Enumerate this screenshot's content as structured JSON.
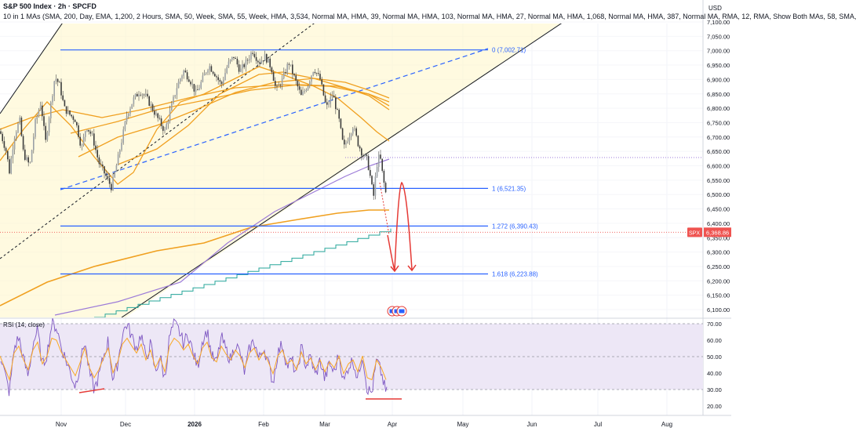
{
  "header": {
    "title": "S&P 500 Index · 2h · SPCFD",
    "indicators": "10 in 1 MAs (SMA, 200, Day, EMA, 1,200, 2 Hours, SMA, 50, Week, SMA, 55, Week, HMA, 3,534, Normal MA, HMA, 39, Normal MA, HMA, 103, Normal MA, HMA, 27, Normal MA, HMA, 1,068, Normal MA, HMA, 387, Normal MA, RMA, 12, RMA, Show Both MAs, 58, SMA,"
  },
  "currency": "USD",
  "colors": {
    "up": "#26a69a",
    "down": "#ef5350",
    "candle": "#5a5a5a",
    "fib": "#2962ff",
    "ma_orange": "#f0a020",
    "ma_purple": "#9c7bd8",
    "ma_teal": "#26a69a",
    "projection": "#e53935",
    "channel_fill": "#fff7cc",
    "rsi_fill": "#ede7f6",
    "rsi_line": "#7e57c2",
    "rsi_ma": "#f9a825"
  },
  "chart_data": {
    "type": "candlestick",
    "price_axis": {
      "min": 6050,
      "max": 7150,
      "ticks": [
        "7,100.00",
        "7,050.00",
        "7,000.00",
        "6,950.00",
        "6,900.00",
        "6,850.00",
        "6,800.00",
        "6,750.00",
        "6,700.00",
        "6,650.00",
        "6,600.00",
        "6,550.00",
        "6,500.00",
        "6,450.00",
        "6,400.00",
        "6,350.00",
        "6,300.00",
        "6,250.00",
        "6,200.00",
        "6,150.00",
        "6,100.00"
      ],
      "last_price": {
        "symbol": "SPX",
        "value": "6,368.86"
      }
    },
    "x_axis": {
      "labels": [
        "Nov",
        "Dec",
        "2026",
        "Feb",
        "Mar",
        "Apr",
        "May",
        "Jun",
        "Jul",
        "Aug"
      ],
      "highlight": "2026"
    },
    "fib_levels": [
      {
        "ratio": "0",
        "label": "0 (7,002.71)",
        "price": 7002.71
      },
      {
        "ratio": "1",
        "label": "1 (6,521.35)",
        "price": 6521.35
      },
      {
        "ratio": "1.272",
        "label": "1.272 (6,390.43)",
        "price": 6390.43
      },
      {
        "ratio": "1.618",
        "label": "1.618 (6,223.88)",
        "price": 6223.88
      }
    ],
    "price_path": [
      [
        0,
        6720
      ],
      [
        8,
        6650
      ],
      [
        12,
        6580
      ],
      [
        18,
        6700
      ],
      [
        25,
        6760
      ],
      [
        30,
        6640
      ],
      [
        38,
        6600
      ],
      [
        45,
        6750
      ],
      [
        52,
        6820
      ],
      [
        58,
        6680
      ],
      [
        64,
        6800
      ],
      [
        70,
        6910
      ],
      [
        76,
        6880
      ],
      [
        82,
        6800
      ],
      [
        88,
        6780
      ],
      [
        96,
        6760
      ],
      [
        104,
        6660
      ],
      [
        110,
        6740
      ],
      [
        118,
        6700
      ],
      [
        126,
        6610
      ],
      [
        134,
        6570
      ],
      [
        142,
        6525
      ],
      [
        150,
        6620
      ],
      [
        156,
        6700
      ],
      [
        162,
        6780
      ],
      [
        170,
        6830
      ],
      [
        178,
        6860
      ],
      [
        186,
        6840
      ],
      [
        194,
        6800
      ],
      [
        202,
        6760
      ],
      [
        210,
        6720
      ],
      [
        218,
        6800
      ],
      [
        226,
        6880
      ],
      [
        234,
        6930
      ],
      [
        242,
        6900
      ],
      [
        250,
        6850
      ],
      [
        258,
        6900
      ],
      [
        266,
        6950
      ],
      [
        274,
        6920
      ],
      [
        282,
        6880
      ],
      [
        290,
        6950
      ],
      [
        298,
        6980
      ],
      [
        306,
        6930
      ],
      [
        314,
        6960
      ],
      [
        322,
        7000
      ],
      [
        330,
        6960
      ],
      [
        338,
        6980
      ],
      [
        346,
        6940
      ],
      [
        352,
        6860
      ],
      [
        360,
        6900
      ],
      [
        368,
        6960
      ],
      [
        376,
        6900
      ],
      [
        384,
        6840
      ],
      [
        392,
        6880
      ],
      [
        400,
        6940
      ],
      [
        408,
        6900
      ],
      [
        416,
        6800
      ],
      [
        424,
        6850
      ],
      [
        432,
        6760
      ],
      [
        438,
        6660
      ],
      [
        444,
        6700
      ],
      [
        450,
        6740
      ],
      [
        456,
        6680
      ],
      [
        462,
        6640
      ],
      [
        468,
        6620
      ],
      [
        472,
        6560
      ],
      [
        476,
        6490
      ],
      [
        480,
        6600
      ],
      [
        484,
        6640
      ],
      [
        488,
        6560
      ],
      [
        492,
        6500
      ]
    ],
    "rsi": {
      "label": "RSI (14, close)",
      "min": 15,
      "max": 75,
      "ticks": [
        "70.00",
        "60.00",
        "50.00",
        "40.00",
        "30.00",
        "20.00"
      ],
      "bands": [
        70,
        50,
        30
      ],
      "path": [
        [
          0,
          52
        ],
        [
          6,
          40
        ],
        [
          12,
          28
        ],
        [
          18,
          55
        ],
        [
          24,
          62
        ],
        [
          30,
          48
        ],
        [
          36,
          38
        ],
        [
          42,
          58
        ],
        [
          48,
          66
        ],
        [
          54,
          44
        ],
        [
          60,
          52
        ],
        [
          66,
          70
        ],
        [
          72,
          68
        ],
        [
          78,
          56
        ],
        [
          84,
          48
        ],
        [
          90,
          40
        ],
        [
          96,
          32
        ],
        [
          102,
          45
        ],
        [
          108,
          60
        ],
        [
          114,
          40
        ],
        [
          120,
          30
        ],
        [
          126,
          38
        ],
        [
          132,
          50
        ],
        [
          138,
          60
        ],
        [
          144,
          35
        ],
        [
          150,
          46
        ],
        [
          156,
          64
        ],
        [
          162,
          70
        ],
        [
          168,
          62
        ],
        [
          174,
          55
        ],
        [
          180,
          64
        ],
        [
          186,
          48
        ],
        [
          192,
          58
        ],
        [
          198,
          40
        ],
        [
          204,
          50
        ],
        [
          210,
          36
        ],
        [
          216,
          62
        ],
        [
          222,
          70
        ],
        [
          228,
          66
        ],
        [
          234,
          58
        ],
        [
          240,
          64
        ],
        [
          246,
          52
        ],
        [
          252,
          44
        ],
        [
          258,
          60
        ],
        [
          264,
          66
        ],
        [
          270,
          50
        ],
        [
          276,
          46
        ],
        [
          282,
          62
        ],
        [
          288,
          54
        ],
        [
          294,
          48
        ],
        [
          300,
          58
        ],
        [
          306,
          52
        ],
        [
          312,
          40
        ],
        [
          318,
          55
        ],
        [
          324,
          60
        ],
        [
          330,
          48
        ],
        [
          336,
          56
        ],
        [
          342,
          46
        ],
        [
          348,
          34
        ],
        [
          354,
          52
        ],
        [
          360,
          58
        ],
        [
          366,
          44
        ],
        [
          372,
          48
        ],
        [
          378,
          38
        ],
        [
          384,
          56
        ],
        [
          390,
          44
        ],
        [
          396,
          50
        ],
        [
          402,
          38
        ],
        [
          408,
          48
        ],
        [
          414,
          36
        ],
        [
          420,
          46
        ],
        [
          426,
          40
        ],
        [
          432,
          52
        ],
        [
          438,
          34
        ],
        [
          444,
          44
        ],
        [
          450,
          48
        ],
        [
          456,
          36
        ],
        [
          462,
          52
        ],
        [
          468,
          30
        ],
        [
          474,
          28
        ],
        [
          480,
          48
        ],
        [
          486,
          40
        ],
        [
          492,
          28
        ]
      ]
    }
  }
}
